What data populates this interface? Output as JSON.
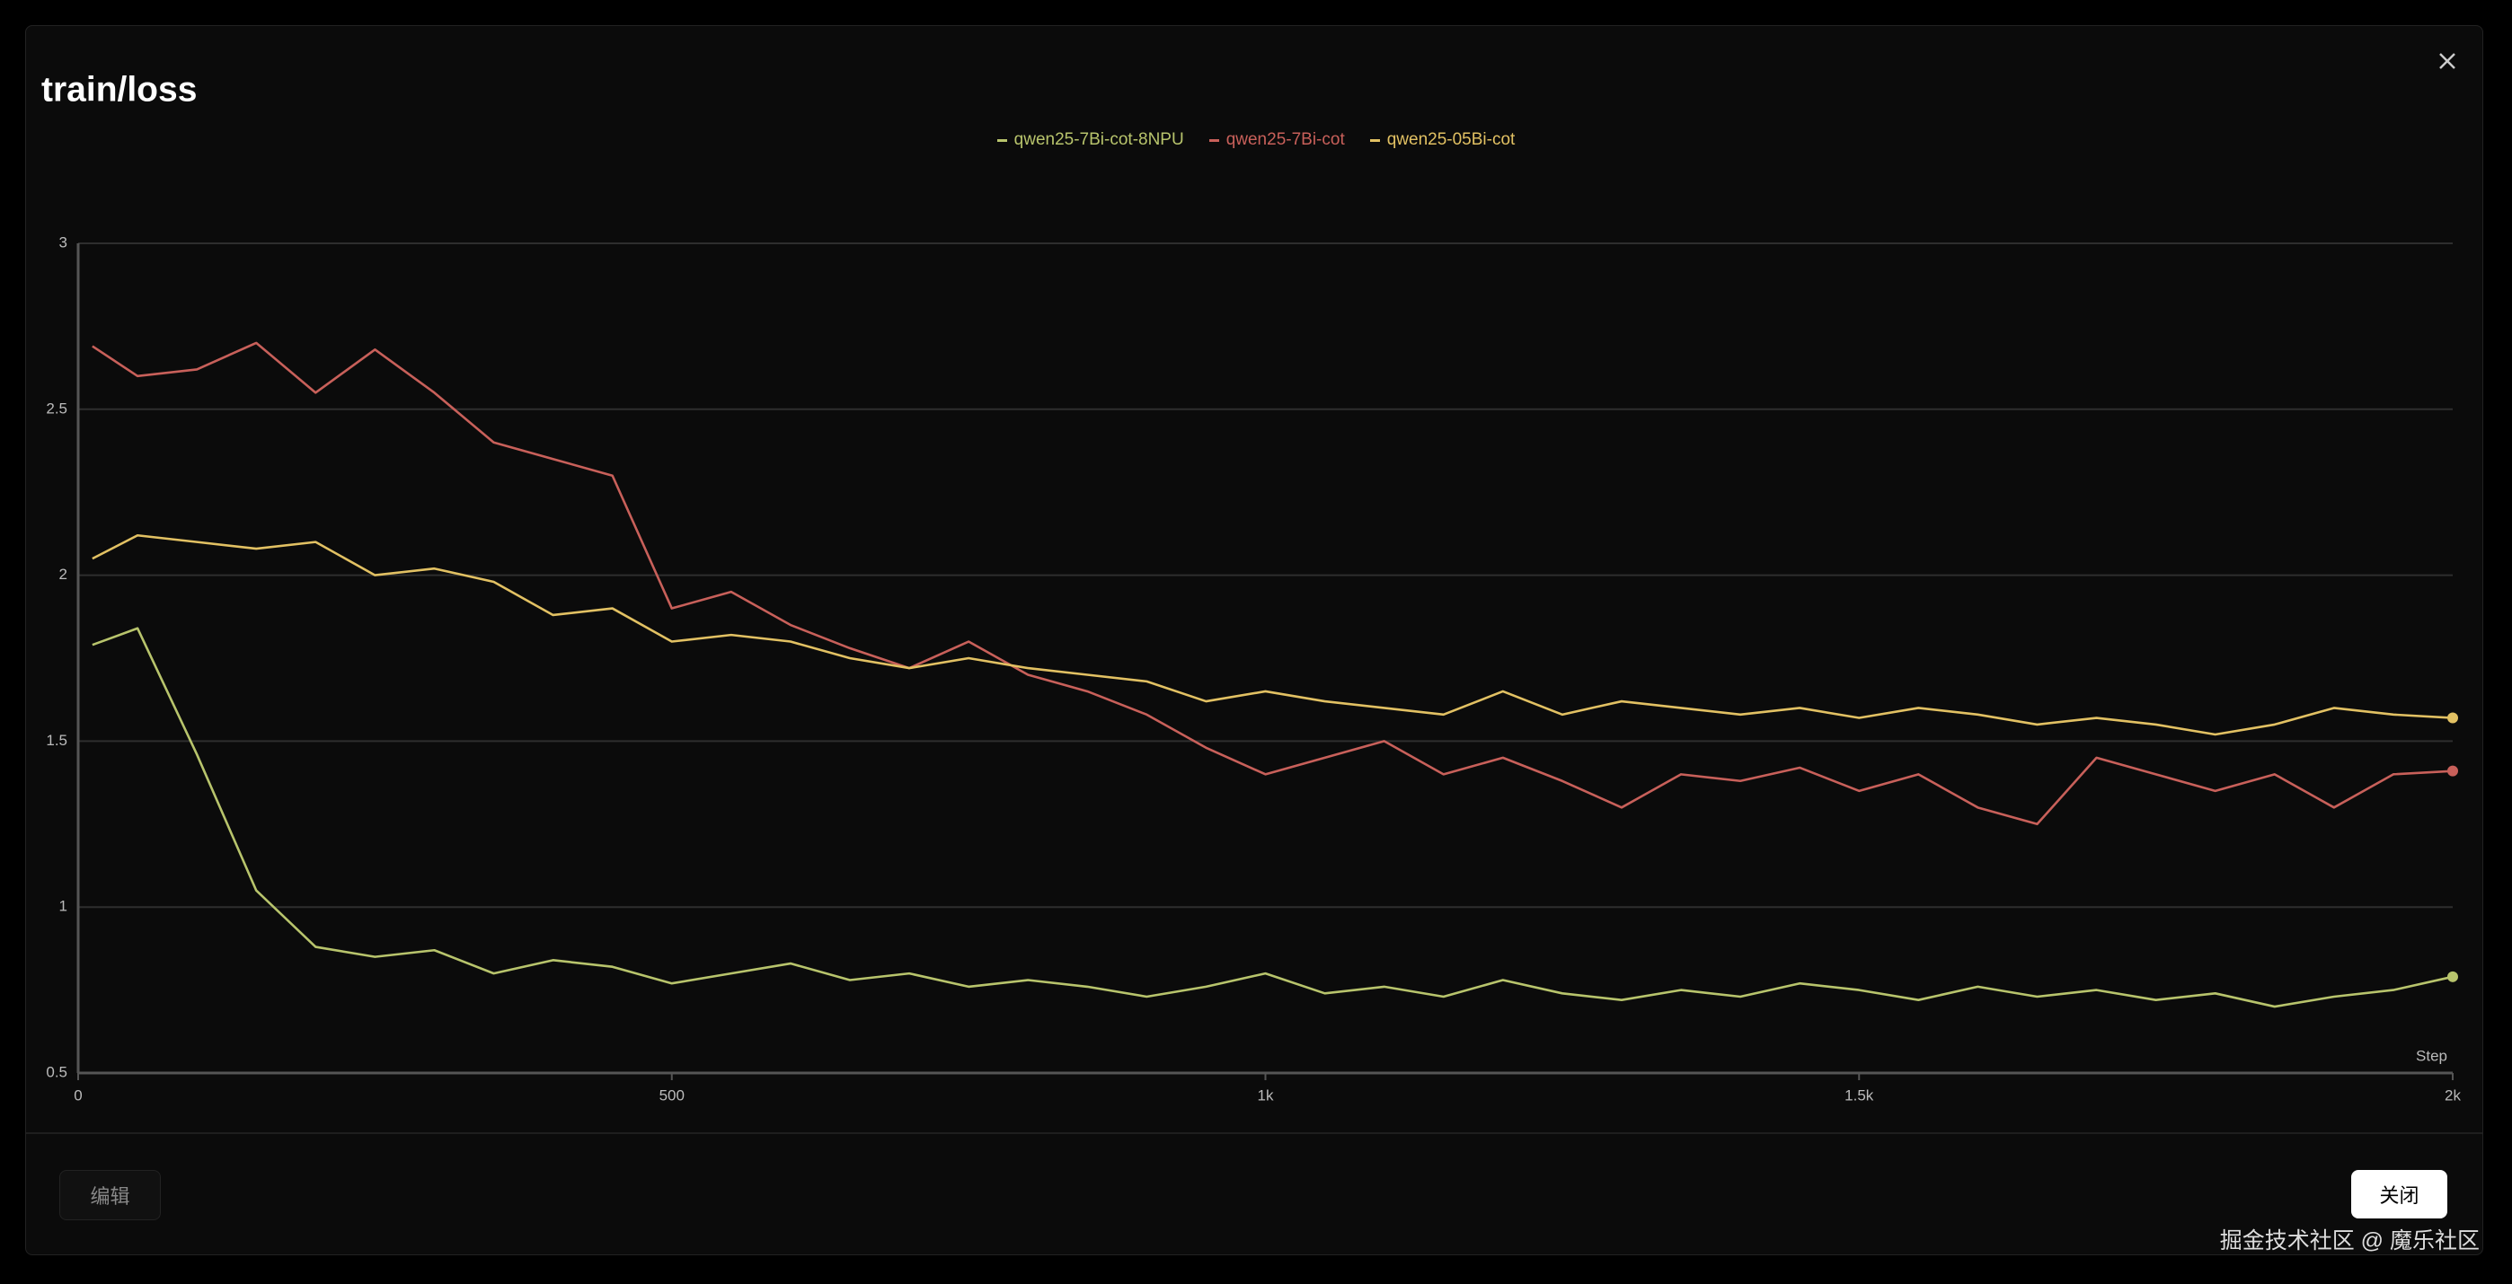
{
  "chart_data": {
    "type": "line",
    "title": "train/loss",
    "xlabel": "Step",
    "x": [
      12,
      50,
      100,
      150,
      200,
      250,
      300,
      350,
      400,
      450,
      500,
      550,
      600,
      650,
      700,
      750,
      800,
      850,
      900,
      950,
      1000,
      1050,
      1100,
      1150,
      1200,
      1250,
      1300,
      1350,
      1400,
      1450,
      1500,
      1550,
      1600,
      1650,
      1700,
      1750,
      1800,
      1850,
      1900,
      1950,
      2000
    ],
    "series": [
      {
        "name": "qwen25-7Bi-cot-8NPU",
        "color": "#b8c46c",
        "values": [
          1.79,
          1.84,
          1.46,
          1.05,
          0.88,
          0.85,
          0.87,
          0.8,
          0.84,
          0.82,
          0.77,
          0.8,
          0.83,
          0.78,
          0.8,
          0.76,
          0.78,
          0.76,
          0.73,
          0.76,
          0.8,
          0.74,
          0.76,
          0.73,
          0.78,
          0.74,
          0.72,
          0.75,
          0.73,
          0.77,
          0.75,
          0.72,
          0.76,
          0.73,
          0.75,
          0.72,
          0.74,
          0.7,
          0.73,
          0.75,
          0.79
        ]
      },
      {
        "name": "qwen25-7Bi-cot",
        "color": "#c8605a",
        "values": [
          2.69,
          2.6,
          2.62,
          2.7,
          2.55,
          2.68,
          2.55,
          2.4,
          2.35,
          2.3,
          1.9,
          1.95,
          1.85,
          1.78,
          1.72,
          1.8,
          1.7,
          1.65,
          1.58,
          1.48,
          1.4,
          1.45,
          1.5,
          1.4,
          1.45,
          1.38,
          1.3,
          1.4,
          1.38,
          1.42,
          1.35,
          1.4,
          1.3,
          1.25,
          1.45,
          1.4,
          1.35,
          1.4,
          1.3,
          1.4,
          1.41
        ]
      },
      {
        "name": "qwen25-05Bi-cot",
        "color": "#e2c163",
        "values": [
          2.05,
          2.12,
          2.1,
          2.08,
          2.1,
          2.0,
          2.02,
          1.98,
          1.88,
          1.9,
          1.8,
          1.82,
          1.8,
          1.75,
          1.72,
          1.75,
          1.72,
          1.7,
          1.68,
          1.62,
          1.65,
          1.62,
          1.6,
          1.58,
          1.65,
          1.58,
          1.62,
          1.6,
          1.58,
          1.6,
          1.57,
          1.6,
          1.58,
          1.55,
          1.57,
          1.55,
          1.52,
          1.55,
          1.6,
          1.58,
          1.57
        ]
      }
    ],
    "xlim": [
      0,
      2000
    ],
    "xticks": [
      0,
      500,
      {
        "value": 1000,
        "label": "1k"
      },
      {
        "value": 1500,
        "label": "1.5k"
      },
      {
        "value": 2000,
        "label": "2k"
      }
    ],
    "ylim": [
      0.5,
      3
    ],
    "yticks": [
      0.5,
      1,
      1.5,
      2,
      2.5,
      3
    ],
    "grid": true
  },
  "dialog": {
    "edit_button": "编辑",
    "close_button": "关闭",
    "watermark": "掘金技术社区 @ 魔乐社区"
  }
}
